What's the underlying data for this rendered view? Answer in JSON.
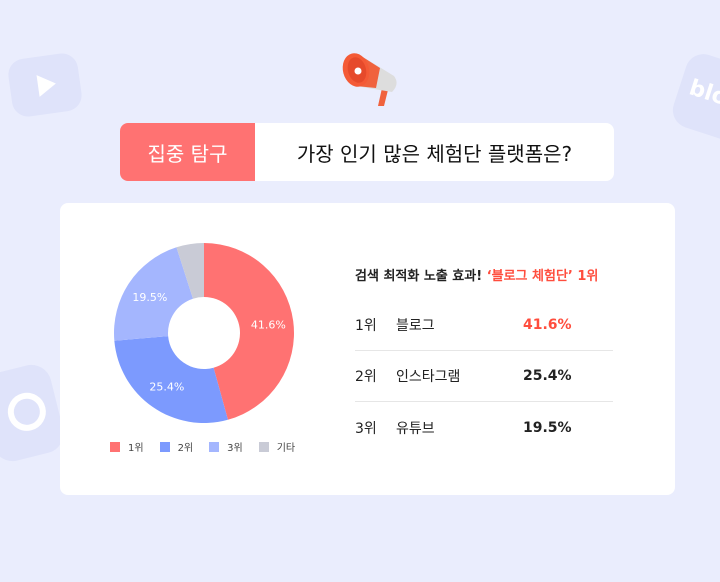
{
  "header": {
    "tag": "집중 탐구",
    "question": "가장 인기 많은 체험단 플랫폼은?"
  },
  "decorations": {
    "icons": [
      "youtube-icon",
      "blog-bubble-icon",
      "instagram-icon",
      "megaphone-icon"
    ],
    "blog_text": "blo"
  },
  "summary": {
    "prefix": "검색 최적화 노출 효과!",
    "highlight": "‘블로그 체험단’",
    "suffix": "1위"
  },
  "ranking": [
    {
      "rank": "1위",
      "name": "블로그",
      "pct": "41.6%",
      "color": "#ff4d3d"
    },
    {
      "rank": "2위",
      "name": "인스타그램",
      "pct": "25.4%",
      "color": "#222222"
    },
    {
      "rank": "3위",
      "name": "유튜브",
      "pct": "19.5%",
      "color": "#222222"
    }
  ],
  "chart_data": {
    "type": "pie",
    "donut": true,
    "categories": [
      "1위",
      "2위",
      "3위",
      "기타"
    ],
    "values": [
      41.6,
      25.4,
      19.5,
      4.5
    ],
    "labels": [
      "41.6%",
      "25.4%",
      "19.5%",
      ""
    ],
    "colors": [
      "#ff7272",
      "#7c9afe",
      "#a4b6fe",
      "#c9cbd6"
    ],
    "legend": "bottom"
  }
}
